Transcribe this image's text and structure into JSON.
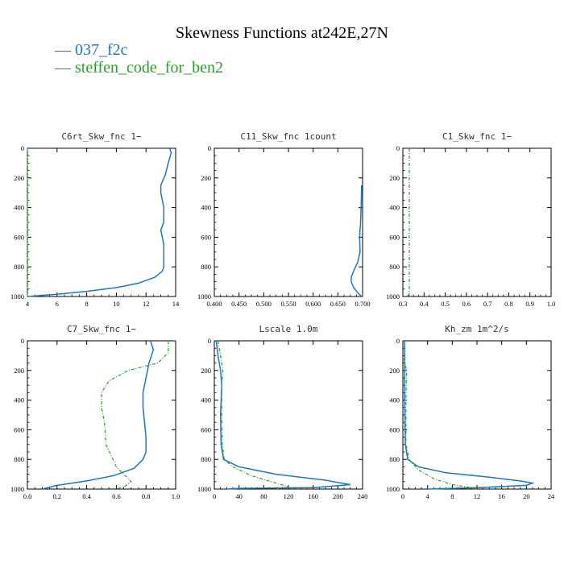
{
  "title": "Skewness Functions at242E,27N",
  "legend": [
    {
      "label": "— 037_f2c",
      "color": "#1f77b4"
    },
    {
      "label": "— steffen_code_for_ben2",
      "color": "#2ca02c"
    }
  ],
  "chart_data": [
    {
      "type": "line",
      "title": "C6rt_Skw_fnc   1−",
      "xlim": [
        4,
        14
      ],
      "ylim": [
        1000,
        0
      ],
      "xticks": [
        "4",
        "6",
        "8",
        "10",
        "12",
        "14"
      ],
      "yticks": [
        "0",
        "200",
        "400",
        "600",
        "800",
        "1000"
      ],
      "series": [
        {
          "name": "037_f2c",
          "color": "#1f77b4",
          "dash": "",
          "points": [
            [
              13.6,
              0
            ],
            [
              13.7,
              30
            ],
            [
              13.5,
              100
            ],
            [
              13.3,
              180
            ],
            [
              13.0,
              250
            ],
            [
              13.0,
              300
            ],
            [
              13.2,
              400
            ],
            [
              13.2,
              500
            ],
            [
              13.0,
              550
            ],
            [
              13.1,
              600
            ],
            [
              13.2,
              650
            ],
            [
              13.2,
              800
            ],
            [
              13.1,
              830
            ],
            [
              12.6,
              870
            ],
            [
              11.5,
              910
            ],
            [
              10.0,
              940
            ],
            [
              8.0,
              965
            ],
            [
              6.0,
              985
            ],
            [
              4.0,
              1000
            ]
          ]
        },
        {
          "name": "steffen_code_for_ben2",
          "color": "#2ca02c",
          "dash": "4,2,1,2",
          "points": [
            [
              4,
              0
            ],
            [
              4,
              1000
            ]
          ]
        }
      ]
    },
    {
      "type": "line",
      "title": "C11_Skw_fnc   1count",
      "xlim": [
        0.4,
        0.7
      ],
      "ylim": [
        1000,
        0
      ],
      "xticks": [
        "0.400",
        "0.450",
        "0.500",
        "0.550",
        "0.600",
        "0.650",
        "0.700"
      ],
      "yticks": [
        "0",
        "200",
        "400",
        "600",
        "800",
        "1000"
      ],
      "series": [
        {
          "name": "037_f2c",
          "color": "#1f77b4",
          "dash": "",
          "points": [
            [
              0.698,
              250
            ],
            [
              0.697,
              400
            ],
            [
              0.696,
              500
            ],
            [
              0.694,
              600
            ],
            [
              0.695,
              700
            ],
            [
              0.69,
              770
            ],
            [
              0.683,
              820
            ],
            [
              0.677,
              870
            ],
            [
              0.677,
              900
            ],
            [
              0.682,
              940
            ],
            [
              0.69,
              975
            ],
            [
              0.698,
              1000
            ]
          ]
        }
      ]
    },
    {
      "type": "line",
      "title": "C1_Skw_fnc   1−",
      "xlim": [
        0.3,
        1.0
      ],
      "ylim": [
        1000,
        0
      ],
      "xticks": [
        "0.3",
        "0.4",
        "0.5",
        "0.6",
        "0.7",
        "0.8",
        "0.9",
        "1.0"
      ],
      "yticks": [
        "0",
        "200",
        "400",
        "600",
        "800",
        "1000"
      ],
      "series": [
        {
          "name": "steffen_code_for_ben2",
          "color": "#2ca02c",
          "dash": "4,2,1,2",
          "points": [
            [
              0.33,
              0
            ],
            [
              0.33,
              1000
            ]
          ]
        }
      ]
    },
    {
      "type": "line",
      "title": "C7_Skw_fnc   1−",
      "xlim": [
        0.0,
        1.0
      ],
      "ylim": [
        1000,
        0
      ],
      "xticks": [
        "0.0",
        "0.2",
        "0.4",
        "0.6",
        "0.8",
        "1.0"
      ],
      "yticks": [
        "0",
        "200",
        "400",
        "600",
        "800",
        "1000"
      ],
      "series": [
        {
          "name": "037_f2c",
          "color": "#1f77b4",
          "dash": "",
          "points": [
            [
              0.83,
              0
            ],
            [
              0.85,
              60
            ],
            [
              0.82,
              150
            ],
            [
              0.8,
              250
            ],
            [
              0.78,
              350
            ],
            [
              0.78,
              450
            ],
            [
              0.79,
              550
            ],
            [
              0.8,
              650
            ],
            [
              0.8,
              750
            ],
            [
              0.78,
              800
            ],
            [
              0.72,
              860
            ],
            [
              0.58,
              910
            ],
            [
              0.4,
              945
            ],
            [
              0.2,
              975
            ],
            [
              0.1,
              1000
            ]
          ]
        },
        {
          "name": "steffen_code_for_ben2",
          "color": "#2ca02c",
          "dash": "4,2,1,2",
          "points": [
            [
              0.95,
              0
            ],
            [
              0.95,
              80
            ],
            [
              0.88,
              150
            ],
            [
              0.68,
              200
            ],
            [
              0.55,
              270
            ],
            [
              0.5,
              350
            ],
            [
              0.5,
              450
            ],
            [
              0.52,
              550
            ],
            [
              0.53,
              700
            ],
            [
              0.6,
              850
            ],
            [
              0.7,
              950
            ],
            [
              0.66,
              980
            ],
            [
              0.6,
              1000
            ]
          ]
        }
      ]
    },
    {
      "type": "line",
      "title": "Lscale   1.0m",
      "xlim": [
        0,
        240
      ],
      "ylim": [
        1000,
        0
      ],
      "xticks": [
        "0",
        "40",
        "80",
        "120",
        "160",
        "200",
        "240"
      ],
      "yticks": [
        "0",
        "200",
        "400",
        "600",
        "800",
        "1000"
      ],
      "series": [
        {
          "name": "037_f2c",
          "color": "#1f77b4",
          "dash": "",
          "points": [
            [
              3,
              0
            ],
            [
              6,
              100
            ],
            [
              10,
              200
            ],
            [
              12,
              300
            ],
            [
              10,
              500
            ],
            [
              11,
              700
            ],
            [
              15,
              800
            ],
            [
              40,
              850
            ],
            [
              100,
              900
            ],
            [
              180,
              940
            ],
            [
              220,
              970
            ],
            [
              160,
              990
            ],
            [
              40,
              995
            ],
            [
              20,
              1000
            ]
          ]
        },
        {
          "name": "steffen_code_for_ben2",
          "color": "#2ca02c",
          "dash": "4,2,1,2",
          "points": [
            [
              6,
              0
            ],
            [
              10,
              100
            ],
            [
              14,
              200
            ],
            [
              12,
              300
            ],
            [
              12,
              500
            ],
            [
              13,
              700
            ],
            [
              16,
              800
            ],
            [
              30,
              850
            ],
            [
              60,
              910
            ],
            [
              100,
              960
            ],
            [
              120,
              985
            ],
            [
              100,
              1000
            ]
          ]
        }
      ]
    },
    {
      "type": "line",
      "title": "Kh_zm   1m^2/s",
      "xlim": [
        0,
        24
      ],
      "ylim": [
        1000,
        0
      ],
      "xticks": [
        "0",
        "4",
        "8",
        "12",
        "16",
        "20",
        "24"
      ],
      "yticks": [
        "0",
        "200",
        "400",
        "600",
        "800",
        "1000"
      ],
      "series": [
        {
          "name": "037_f2c",
          "color": "#1f77b4",
          "dash": "",
          "points": [
            [
              0.3,
              0
            ],
            [
              0.3,
              400
            ],
            [
              0.4,
              700
            ],
            [
              0.8,
              800
            ],
            [
              2.5,
              850
            ],
            [
              7,
              890
            ],
            [
              14,
              920
            ],
            [
              19,
              945
            ],
            [
              21,
              960
            ],
            [
              20,
              975
            ],
            [
              12,
              990
            ],
            [
              4,
              1000
            ]
          ]
        },
        {
          "name": "steffen_code_for_ben2",
          "color": "#2ca02c",
          "dash": "4,2,1,2",
          "points": [
            [
              0.2,
              120
            ],
            [
              0.6,
              200
            ],
            [
              0.5,
              400
            ],
            [
              0.5,
              700
            ],
            [
              1.0,
              800
            ],
            [
              2.5,
              870
            ],
            [
              5,
              930
            ],
            [
              8,
              970
            ],
            [
              11,
              990
            ],
            [
              12,
              1000
            ]
          ]
        }
      ]
    }
  ]
}
